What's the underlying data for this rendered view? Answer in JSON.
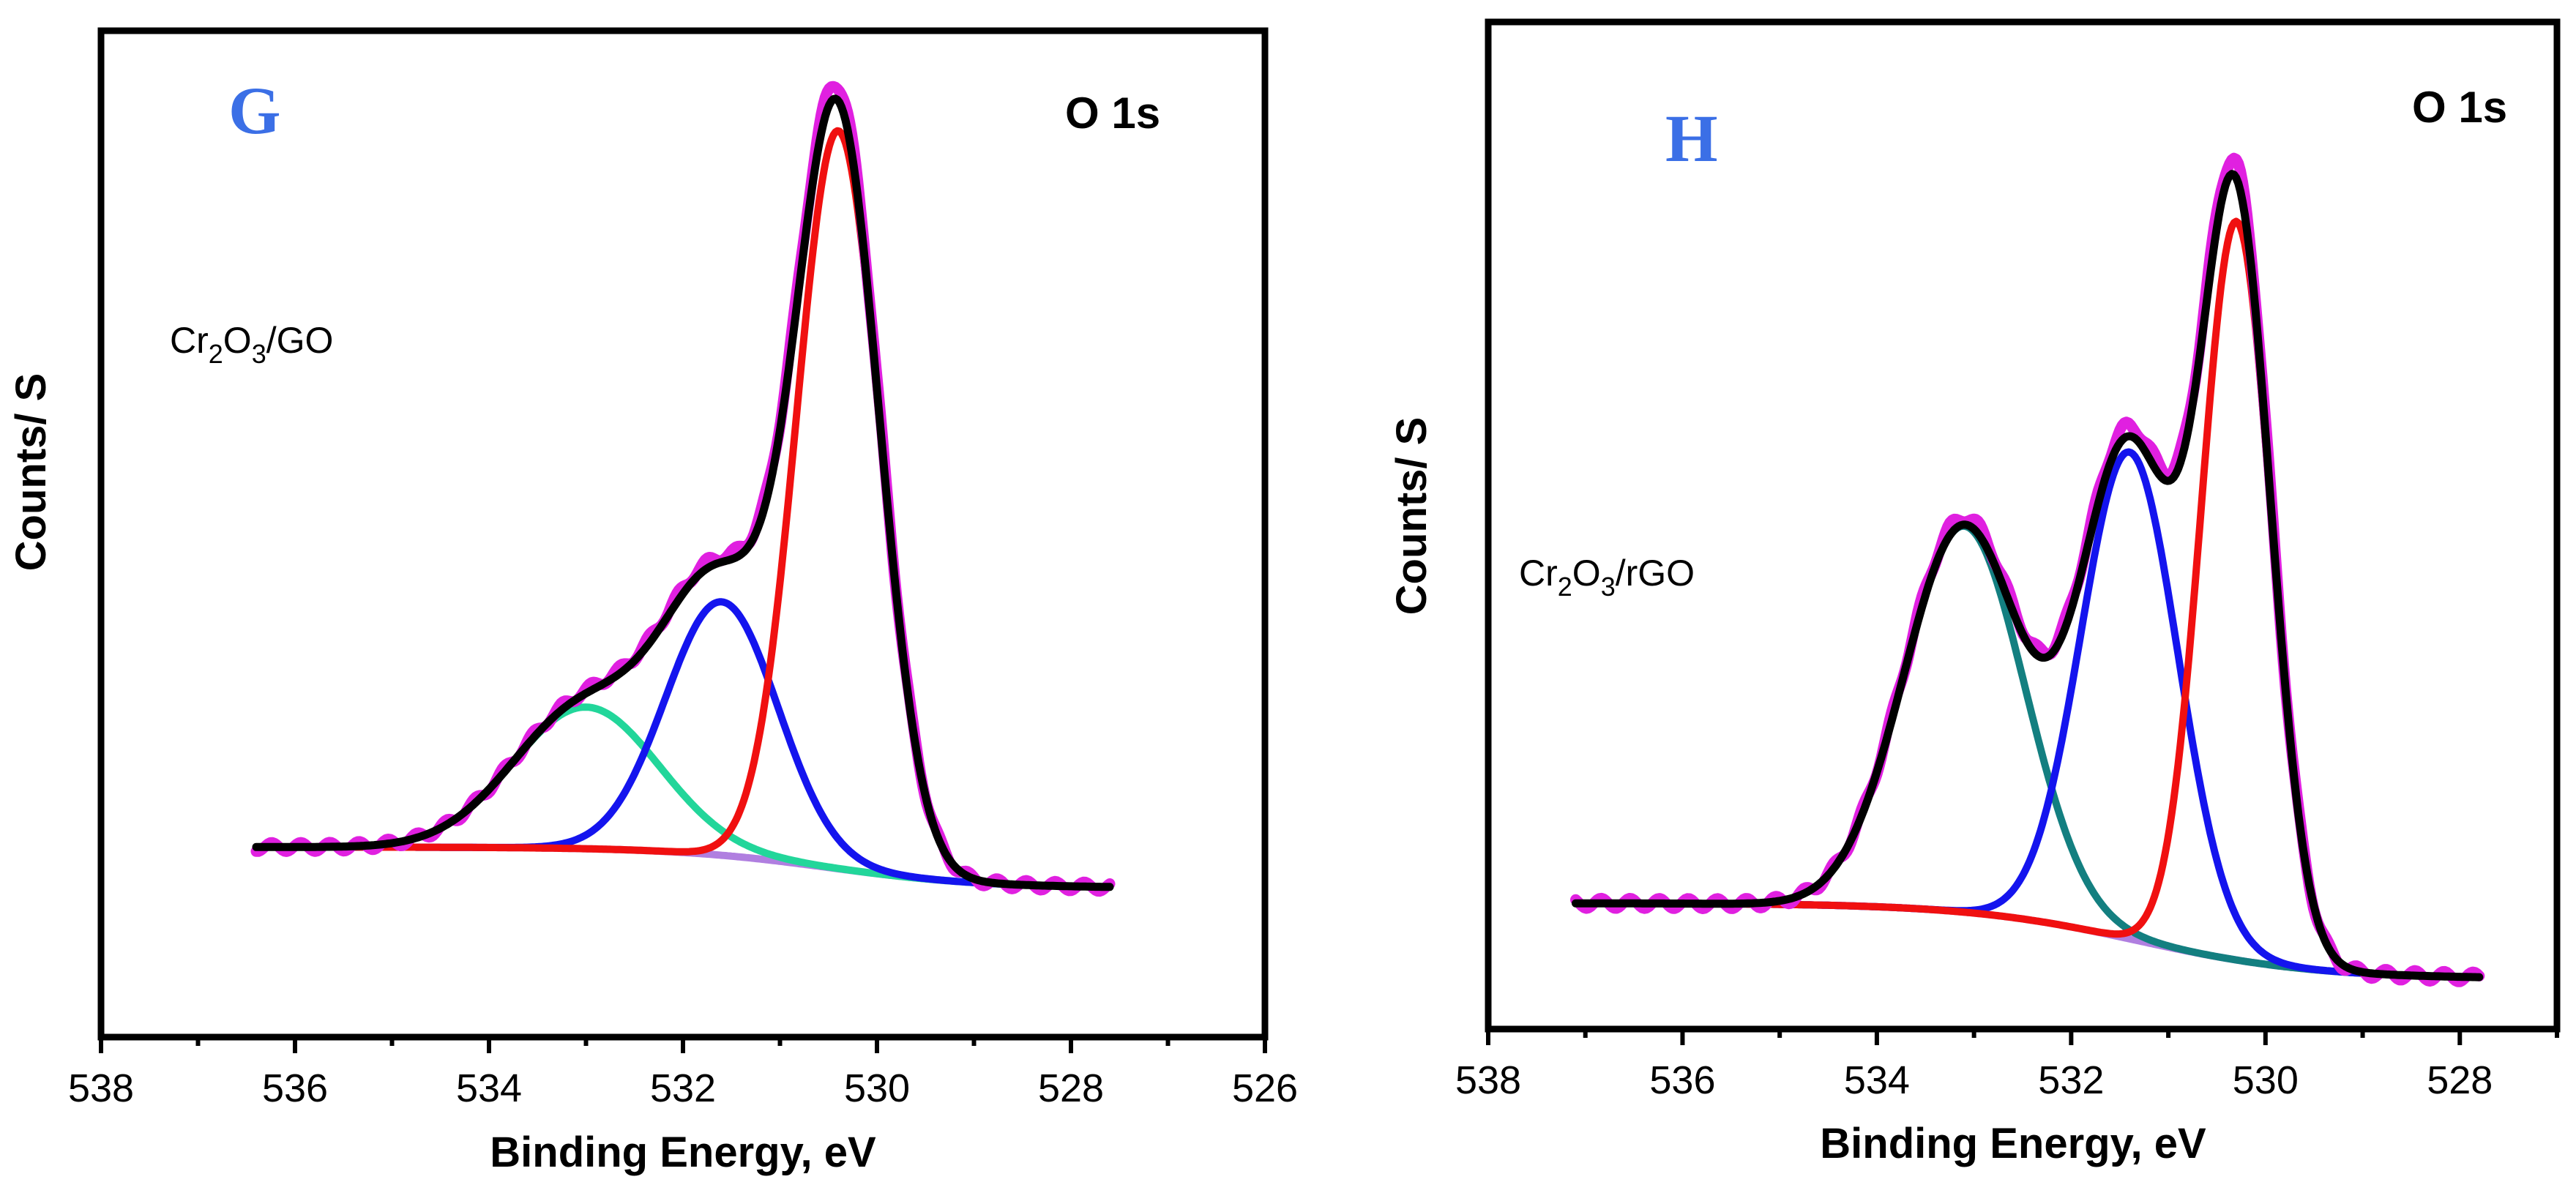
{
  "chart_data": [
    {
      "type": "line",
      "panel_label": "G",
      "region_label": "O 1s",
      "sample_label": {
        "prefix": "Cr",
        "sub1": "2",
        "mid": "O",
        "sub2": "3",
        "suffix": "/GO"
      },
      "xlabel": "Binding Energy, eV",
      "ylabel": "Counts/ S",
      "xlim": [
        538,
        526
      ],
      "ylim": [
        -0.25,
        1.1
      ],
      "xticks": [
        538,
        536,
        534,
        532,
        530,
        528,
        526
      ],
      "x_range": [
        536.4,
        527.6
      ],
      "background": {
        "start": 0.005,
        "end": -0.05,
        "center": 530.5,
        "width": 0.8
      },
      "series": [
        {
          "name": "Background",
          "color": "#b07fe0",
          "role": "background"
        },
        {
          "name": "Peak 533.0 eV",
          "color": "#22d69a",
          "role": "peak",
          "center": 533.0,
          "amplitude": 0.19,
          "sigma": 0.75
        },
        {
          "name": "Peak 531.6 eV",
          "color": "#1414ee",
          "role": "peak",
          "center": 531.6,
          "amplitude": 0.34,
          "sigma": 0.58
        },
        {
          "name": "Peak 530.4 eV",
          "color": "#f01010",
          "role": "peak",
          "center": 530.4,
          "amplitude": 0.99,
          "sigma": 0.43
        },
        {
          "name": "Experimental",
          "color": "#e020e0",
          "role": "measured"
        },
        {
          "name": "Envelope",
          "color": "#000000",
          "role": "envelope"
        }
      ]
    },
    {
      "type": "line",
      "panel_label": "H",
      "region_label": "O 1s",
      "sample_label": {
        "prefix": "Cr",
        "sub1": "2",
        "mid": "O",
        "sub2": "3",
        "suffix": "/rGO"
      },
      "xlabel": "Binding Energy, eV",
      "ylabel": "Counts/ S",
      "xlim": [
        538,
        527
      ],
      "ylim": [
        -0.15,
        1.05
      ],
      "xticks": [
        538,
        536,
        534,
        532,
        530,
        528
      ],
      "x_range": [
        537.1,
        527.8
      ],
      "background": {
        "start": 0.0,
        "end": -0.09,
        "center": 531.3,
        "width": 0.9
      },
      "series": [
        {
          "name": "Background",
          "color": "#b07fe0",
          "role": "background"
        },
        {
          "name": "Peak 533.1 eV",
          "color": "#137f80",
          "role": "peak",
          "center": 533.1,
          "amplitude": 0.46,
          "sigma": 0.62
        },
        {
          "name": "Peak 531.4 eV",
          "color": "#1414ee",
          "role": "peak",
          "center": 531.4,
          "amplitude": 0.58,
          "sigma": 0.5
        },
        {
          "name": "Peak 530.3 eV",
          "color": "#f01010",
          "role": "peak",
          "center": 530.3,
          "amplitude": 0.88,
          "sigma": 0.36
        },
        {
          "name": "Experimental",
          "color": "#e020e0",
          "role": "measured"
        },
        {
          "name": "Envelope",
          "color": "#000000",
          "role": "envelope"
        }
      ]
    }
  ]
}
